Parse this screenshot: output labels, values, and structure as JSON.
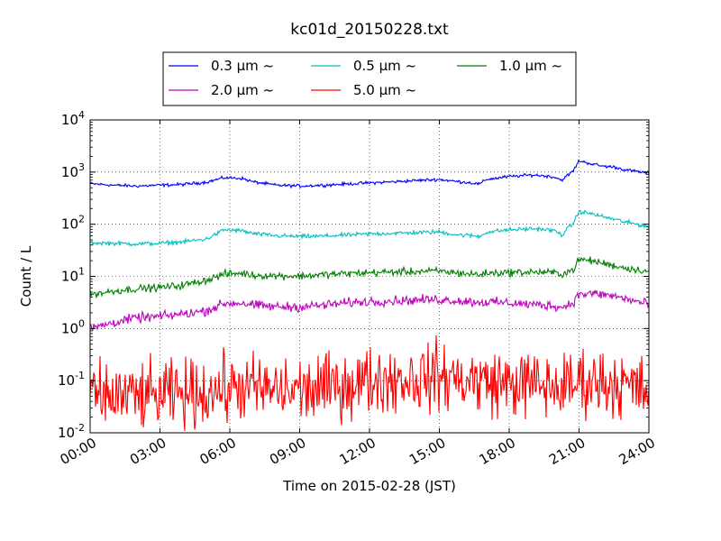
{
  "chart_data": {
    "type": "line",
    "title": "kc01d_20150228.txt",
    "xlabel": "Time on 2015-02-28 (JST)",
    "ylabel": "Count / L",
    "y_scale": "log",
    "xlim": [
      "00:00",
      "24:00"
    ],
    "ylim": [
      0.01,
      10000
    ],
    "grid": true,
    "legend_position": "top-center",
    "x_ticks": [
      "00:00",
      "03:00",
      "06:00",
      "09:00",
      "12:00",
      "15:00",
      "18:00",
      "21:00",
      "24:00"
    ],
    "y_ticks": [
      {
        "base": "10",
        "exp": "-2"
      },
      {
        "base": "10",
        "exp": "-1"
      },
      {
        "base": "10",
        "exp": "0"
      },
      {
        "base": "10",
        "exp": "1"
      },
      {
        "base": "10",
        "exp": "2"
      },
      {
        "base": "10",
        "exp": "3"
      },
      {
        "base": "10",
        "exp": "4"
      }
    ],
    "x": [
      "00:00",
      "01:00",
      "02:00",
      "03:00",
      "04:00",
      "05:00",
      "05:45",
      "06:30",
      "07:00",
      "08:00",
      "09:00",
      "10:00",
      "11:00",
      "12:00",
      "13:00",
      "14:00",
      "15:00",
      "15:45",
      "16:15",
      "16:45",
      "17:00",
      "18:00",
      "19:00",
      "19:30",
      "20:00",
      "20:15",
      "20:45",
      "21:00",
      "21:30",
      "22:00",
      "22:30",
      "23:00",
      "24:00"
    ],
    "series": [
      {
        "name": "0.3 μm ~",
        "color": "#0000ff",
        "noise": 0.015,
        "values": [
          600,
          560,
          540,
          560,
          580,
          640,
          780,
          760,
          650,
          560,
          540,
          560,
          590,
          620,
          650,
          690,
          720,
          660,
          630,
          590,
          720,
          820,
          880,
          850,
          790,
          700,
          1050,
          1650,
          1450,
          1300,
          1250,
          1100,
          950
        ]
      },
      {
        "name": "0.5 μm ~",
        "color": "#00bfbf",
        "noise": 0.02,
        "values": [
          44,
          43,
          42,
          43,
          46,
          52,
          78,
          75,
          66,
          60,
          58,
          59,
          62,
          65,
          67,
          69,
          71,
          63,
          61,
          58,
          70,
          78,
          82,
          80,
          74,
          62,
          105,
          175,
          160,
          140,
          125,
          110,
          90
        ]
      },
      {
        "name": "1.0 μm ~",
        "color": "#008000",
        "noise": 0.035,
        "values": [
          4.5,
          5.2,
          5.8,
          6.1,
          6.8,
          8.5,
          11,
          11.5,
          10.5,
          10.3,
          10.1,
          10.8,
          11.3,
          11.8,
          12.1,
          12.4,
          12.6,
          11.7,
          11.2,
          10.8,
          11.5,
          11.9,
          12.1,
          12,
          11.7,
          11,
          13.5,
          21,
          20,
          18,
          16,
          14.5,
          12.5
        ]
      },
      {
        "name": "2.0 μm ~",
        "color": "#bf00bf",
        "noise": 0.045,
        "values": [
          1.0,
          1.3,
          1.6,
          1.7,
          1.9,
          2.2,
          3,
          3.1,
          2.8,
          2.6,
          2.6,
          2.8,
          3.1,
          3.3,
          3.4,
          3.5,
          3.6,
          3.4,
          3.3,
          3.2,
          3.2,
          3.1,
          2.9,
          2.8,
          2.7,
          2.5,
          3.2,
          4.5,
          4.7,
          4.5,
          4.2,
          3.7,
          2.9
        ]
      },
      {
        "name": "5.0 μm ~",
        "color": "#ff0000",
        "noise": 0.32,
        "values": [
          0.05,
          0.05,
          0.05,
          0.05,
          0.055,
          0.06,
          0.07,
          0.075,
          0.07,
          0.065,
          0.065,
          0.07,
          0.085,
          0.1,
          0.11,
          0.11,
          0.12,
          0.11,
          0.1,
          0.1,
          0.095,
          0.09,
          0.085,
          0.08,
          0.075,
          0.075,
          0.08,
          0.1,
          0.1,
          0.095,
          0.09,
          0.08,
          0.06
        ]
      }
    ]
  }
}
